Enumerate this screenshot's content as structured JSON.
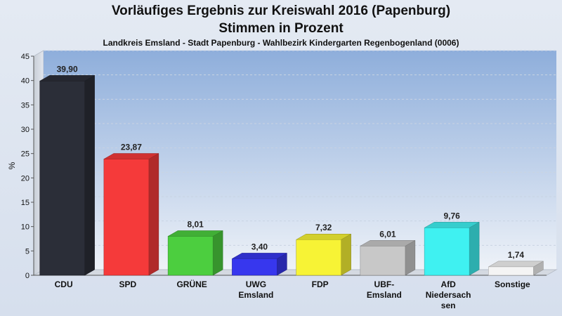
{
  "chart_data": {
    "type": "bar",
    "title": "Vorläufiges Ergebnis zur Kreiswahl 2016 (Papenburg)",
    "subtitle": "Stimmen in Prozent",
    "caption": "Landkreis Emsland - Stadt Papenburg - Wahlbezirk Kindergarten Regenbogenland (0006)",
    "ylabel": "%",
    "xlabel": "",
    "ylim": [
      0,
      45
    ],
    "yticks": [
      0,
      5,
      10,
      15,
      20,
      25,
      30,
      35,
      40,
      45
    ],
    "grid": true,
    "categories": [
      [
        "CDU"
      ],
      [
        "SPD"
      ],
      [
        "GRÜNE"
      ],
      [
        "UWG",
        "Emsland"
      ],
      [
        "FDP"
      ],
      [
        "UBF-",
        "Emsland"
      ],
      [
        "AfD",
        "Niedersach",
        "sen"
      ],
      [
        "Sonstige"
      ]
    ],
    "values": [
      39.9,
      23.87,
      8.01,
      3.4,
      7.32,
      6.01,
      9.76,
      1.74
    ],
    "value_labels": [
      "39,90",
      "23,87",
      "8,01",
      "3,40",
      "7,32",
      "6,01",
      "9,76",
      "1,74"
    ],
    "colors": [
      "#2b2e38",
      "#f53a3a",
      "#4cce3f",
      "#3737ee",
      "#f7f335",
      "#c8c8c8",
      "#3ff1f1",
      "#f4f4f4"
    ]
  }
}
